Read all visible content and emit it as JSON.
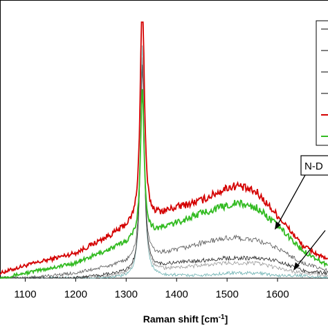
{
  "chart_data": {
    "type": "line",
    "xlabel": "Raman shift [cm",
    "xlabel_sup": "-1",
    "xlabel_end": "]",
    "xlim": [
      1050,
      1700
    ],
    "ylim": [
      0,
      1
    ],
    "x_ticks": [
      1100,
      1200,
      1300,
      1400,
      1500,
      1600
    ],
    "grid": false,
    "legend_position": "top-right",
    "annotations": [
      {
        "text": "N-D",
        "target_series": 4
      },
      {
        "text": "",
        "target_series": 3
      }
    ],
    "series": [
      {
        "color": "#d40000",
        "peak": 0.97,
        "background": [
          [
            1050,
            0.02
          ],
          [
            1100,
            0.05
          ],
          [
            1200,
            0.1
          ],
          [
            1300,
            0.2
          ],
          [
            1400,
            0.28
          ],
          [
            1450,
            0.31
          ],
          [
            1500,
            0.36
          ],
          [
            1520,
            0.37
          ],
          [
            1560,
            0.34
          ],
          [
            1600,
            0.25
          ],
          [
            1650,
            0.13
          ],
          [
            1700,
            0.07
          ]
        ]
      },
      {
        "color": "#33bb22",
        "peak": 0.58,
        "background": [
          [
            1050,
            0.0
          ],
          [
            1100,
            0.02
          ],
          [
            1200,
            0.06
          ],
          [
            1300,
            0.14
          ],
          [
            1400,
            0.22
          ],
          [
            1450,
            0.26
          ],
          [
            1500,
            0.29
          ],
          [
            1520,
            0.3
          ],
          [
            1560,
            0.28
          ],
          [
            1600,
            0.21
          ],
          [
            1650,
            0.11
          ],
          [
            1700,
            0.05
          ]
        ]
      },
      {
        "color": "#555555",
        "peak": 0.78,
        "background": [
          [
            1050,
            0.0
          ],
          [
            1100,
            0.0
          ],
          [
            1200,
            0.02
          ],
          [
            1300,
            0.06
          ],
          [
            1400,
            0.11
          ],
          [
            1450,
            0.14
          ],
          [
            1500,
            0.16
          ],
          [
            1520,
            0.16
          ],
          [
            1560,
            0.15
          ],
          [
            1600,
            0.12
          ],
          [
            1650,
            0.06
          ],
          [
            1700,
            0.03
          ]
        ]
      },
      {
        "color": "#222222",
        "peak": 0.82,
        "background": [
          [
            1050,
            0.0
          ],
          [
            1100,
            0.0
          ],
          [
            1200,
            0.0
          ],
          [
            1300,
            0.02
          ],
          [
            1400,
            0.06
          ],
          [
            1450,
            0.07
          ],
          [
            1500,
            0.08
          ],
          [
            1520,
            0.08
          ],
          [
            1560,
            0.08
          ],
          [
            1600,
            0.07
          ],
          [
            1650,
            0.03
          ],
          [
            1700,
            0.02
          ]
        ]
      },
      {
        "color": "#999999",
        "peak": 0.86,
        "background": [
          [
            1050,
            0.0
          ],
          [
            1100,
            0.0
          ],
          [
            1200,
            0.0
          ],
          [
            1300,
            0.01
          ],
          [
            1400,
            0.04
          ],
          [
            1450,
            0.05
          ],
          [
            1500,
            0.06
          ],
          [
            1520,
            0.06
          ],
          [
            1560,
            0.06
          ],
          [
            1600,
            0.04
          ],
          [
            1650,
            0.02
          ],
          [
            1700,
            0.01
          ]
        ]
      },
      {
        "color": "#6ab0b0",
        "peak": 0.92,
        "background": [
          [
            1050,
            0.0
          ],
          [
            1100,
            0.0
          ],
          [
            1200,
            0.0
          ],
          [
            1300,
            0.0
          ],
          [
            1400,
            0.01
          ],
          [
            1450,
            0.01
          ],
          [
            1500,
            0.02
          ],
          [
            1520,
            0.02
          ],
          [
            1560,
            0.02
          ],
          [
            1600,
            0.01
          ],
          [
            1650,
            0.01
          ],
          [
            1700,
            0.0
          ]
        ]
      }
    ],
    "legend": {
      "entries": [
        {
          "color": "#000000"
        },
        {
          "color": "#000000"
        },
        {
          "color": "#000000"
        },
        {
          "color": "#000000"
        },
        {
          "color": "#d40000"
        },
        {
          "color": "#33bb22"
        }
      ]
    }
  }
}
